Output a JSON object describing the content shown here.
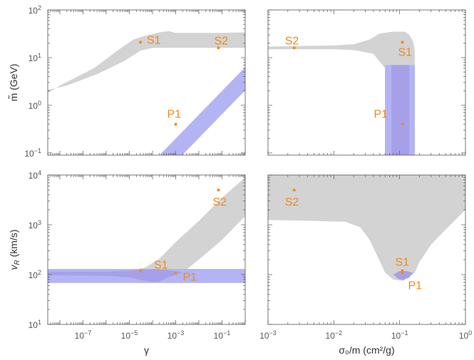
{
  "colors": {
    "gray_region": "#d3d3d3",
    "blue_region": "#b4b4f4",
    "overlap_region": "#a6a0e8",
    "points": "#f08a1c",
    "frame": "#555555"
  },
  "chart_data": [
    {
      "type": "area",
      "id": "top-left",
      "ylabel": "m̃ (GeV)",
      "xlabel": "",
      "x_scale": "log",
      "y_scale": "log",
      "xlim": [
        3e-09,
        1
      ],
      "ylim": [
        0.09,
        100
      ],
      "x_ticks": [
        "10^-7",
        "10^-5",
        "10^-3",
        "10^-1"
      ],
      "x_ticks_labeled": false,
      "y_ticks": [
        "10^-1",
        "10^0",
        "10^1",
        "10^2"
      ],
      "y_ticks_labeled": true,
      "regions": [
        {
          "color_key": "gray_region",
          "type": "poly",
          "points": [
            [
              3e-09,
              1.8
            ],
            [
              1e-08,
              2.6
            ],
            [
              3e-07,
              6
            ],
            [
              3e-06,
              14
            ],
            [
              1.5e-05,
              24
            ],
            [
              4e-05,
              28
            ],
            [
              0.0002,
              34
            ],
            [
              0.0005,
              36
            ],
            [
              0.001,
              33
            ],
            [
              0.01,
              33
            ],
            [
              0.1,
              33
            ],
            [
              1,
              34
            ],
            [
              1,
              16
            ],
            [
              0.1,
              16
            ],
            [
              0.01,
              16
            ],
            [
              0.001,
              16
            ],
            [
              0.0003,
              16
            ],
            [
              0.0001,
              16
            ],
            [
              3e-05,
              14
            ],
            [
              6e-06,
              8.5
            ],
            [
              4e-07,
              4.5
            ],
            [
              2e-08,
              2.6
            ],
            [
              3e-09,
              2.1
            ]
          ]
        },
        {
          "color_key": "blue_region",
          "type": "band_line",
          "x_range": [
            1e-06,
            1
          ],
          "y_low_at_x1": 0.065,
          "y_high_at_x1": 0.2,
          "slope_decades": 0.5
        }
      ],
      "points": [
        {
          "label": "S1",
          "x": 3e-05,
          "y": 21
        },
        {
          "label": "S2",
          "x": 0.07,
          "y": 16
        },
        {
          "label": "P1",
          "x": 0.001,
          "y": 0.4
        }
      ]
    },
    {
      "type": "area",
      "id": "top-right",
      "ylabel": "",
      "xlabel": "",
      "x_scale": "log",
      "y_scale": "log",
      "xlim": [
        0.001,
        1
      ],
      "ylim": [
        0.09,
        100
      ],
      "x_ticks": [
        "10^-3",
        "10^-2",
        "10^-1",
        "10^0"
      ],
      "x_ticks_labeled": false,
      "y_ticks": [
        "10^-1",
        "10^0",
        "10^1",
        "10^2"
      ],
      "y_ticks_labeled": false,
      "regions": [
        {
          "color_key": "gray_region",
          "type": "poly",
          "points": [
            [
              0.001,
              17
            ],
            [
              0.01,
              18
            ],
            [
              0.02,
              19
            ],
            [
              0.035,
              24
            ],
            [
              0.05,
              32
            ],
            [
              0.08,
              35
            ],
            [
              0.12,
              35
            ],
            [
              0.14,
              30
            ],
            [
              0.16,
              22
            ],
            [
              0.17,
              14
            ],
            [
              0.17,
              0.09
            ],
            [
              0.06,
              0.09
            ],
            [
              0.06,
              6
            ],
            [
              0.04,
              12
            ],
            [
              0.02,
              14.5
            ],
            [
              0.01,
              15
            ],
            [
              0.001,
              15
            ]
          ]
        },
        {
          "color_key": "blue_region",
          "type": "rect",
          "x": [
            0.06,
            0.17
          ],
          "y": [
            0.09,
            7
          ]
        },
        {
          "color_key": "overlap_region",
          "type": "rect",
          "x": [
            0.075,
            0.14
          ],
          "y": [
            0.09,
            7
          ]
        }
      ],
      "points": [
        {
          "label": "S1",
          "x": 0.11,
          "y": 21
        },
        {
          "label": "S2",
          "x": 0.0025,
          "y": 16
        },
        {
          "label": "P1",
          "x": 0.11,
          "y": 0.4
        }
      ]
    },
    {
      "type": "area",
      "id": "bottom-left",
      "ylabel": "v_R (km/s)",
      "xlabel": "γ",
      "x_scale": "log",
      "y_scale": "log",
      "xlim": [
        3e-09,
        1
      ],
      "ylim": [
        10,
        10000
      ],
      "x_ticks": [
        "10^-7",
        "10^-5",
        "10^-3",
        "10^-1"
      ],
      "x_ticks_labeled": true,
      "y_ticks": [
        "10^1",
        "10^2",
        "10^3",
        "10^4"
      ],
      "y_ticks_labeled": true,
      "regions": [
        {
          "color_key": "gray_region",
          "type": "poly",
          "points": [
            [
              3e-09,
              115
            ],
            [
              1e-06,
              115
            ],
            [
              1e-05,
              120
            ],
            [
              5e-05,
              140
            ],
            [
              0.0002,
              210
            ],
            [
              0.001,
              450
            ],
            [
              0.01,
              1200
            ],
            [
              0.1,
              3500
            ],
            [
              1,
              9000
            ],
            [
              1,
              1500
            ],
            [
              0.1,
              500
            ],
            [
              0.01,
              200
            ],
            [
              0.002,
              110
            ],
            [
              0.0005,
              90
            ],
            [
              0.0002,
              72
            ],
            [
              0.0001,
              70
            ],
            [
              3e-05,
              78
            ],
            [
              1e-05,
              88
            ],
            [
              1e-06,
              95
            ],
            [
              3e-09,
              98
            ]
          ]
        },
        {
          "color_key": "blue_region",
          "type": "rect",
          "x": [
            3e-09,
            1
          ],
          "y": [
            68,
            130
          ]
        },
        {
          "color_key": "overlap_region",
          "type": "poly",
          "points": [
            [
              3e-09,
              115
            ],
            [
              1e-06,
              115
            ],
            [
              1e-05,
              120
            ],
            [
              5e-05,
              128
            ],
            [
              0.0002,
              128
            ],
            [
              0.001,
              118
            ],
            [
              0.002,
              110
            ],
            [
              0.0005,
              90
            ],
            [
              0.0002,
              72
            ],
            [
              0.0001,
              70
            ],
            [
              3e-05,
              78
            ],
            [
              1e-05,
              88
            ],
            [
              1e-06,
              95
            ],
            [
              3e-09,
              98
            ]
          ]
        }
      ],
      "points": [
        {
          "label": "S1",
          "x": 3e-05,
          "y": 120
        },
        {
          "label": "S2",
          "x": 0.07,
          "y": 5000
        },
        {
          "label": "P1",
          "x": 0.001,
          "y": 108
        }
      ]
    },
    {
      "type": "area",
      "id": "bottom-right",
      "ylabel": "",
      "xlabel": "σ₀/m (cm²/g)",
      "x_scale": "log",
      "y_scale": "log",
      "xlim": [
        0.001,
        1
      ],
      "ylim": [
        10,
        10000
      ],
      "x_ticks": [
        "10^-3",
        "10^-2",
        "10^-1",
        "10^0"
      ],
      "x_ticks_labeled": true,
      "y_ticks": [
        "10^1",
        "10^2",
        "10^3",
        "10^4"
      ],
      "y_ticks_labeled": false,
      "regions": [
        {
          "color_key": "gray_region",
          "type": "poly",
          "points": [
            [
              0.001,
              10000
            ],
            [
              1,
              10000
            ],
            [
              1,
              2000
            ],
            [
              0.5,
              800
            ],
            [
              0.3,
              400
            ],
            [
              0.2,
              180
            ],
            [
              0.17,
              110
            ],
            [
              0.13,
              85
            ],
            [
              0.11,
              75
            ],
            [
              0.08,
              80
            ],
            [
              0.06,
              110
            ],
            [
              0.045,
              250
            ],
            [
              0.035,
              500
            ],
            [
              0.025,
              900
            ],
            [
              0.015,
              1150
            ],
            [
              0.005,
              1200
            ],
            [
              0.001,
              1250
            ]
          ]
        },
        {
          "color_key": "overlap_region",
          "type": "poly",
          "points": [
            [
              0.08,
              100
            ],
            [
              0.1,
              118
            ],
            [
              0.13,
              118
            ],
            [
              0.16,
              108
            ],
            [
              0.14,
              88
            ],
            [
              0.115,
              78
            ],
            [
              0.095,
              82
            ]
          ]
        }
      ],
      "points": [
        {
          "label": "S1",
          "x": 0.11,
          "y": 120
        },
        {
          "label": "S2",
          "x": 0.0025,
          "y": 5000
        },
        {
          "label": "P1",
          "x": 0.11,
          "y": 108
        }
      ]
    }
  ]
}
